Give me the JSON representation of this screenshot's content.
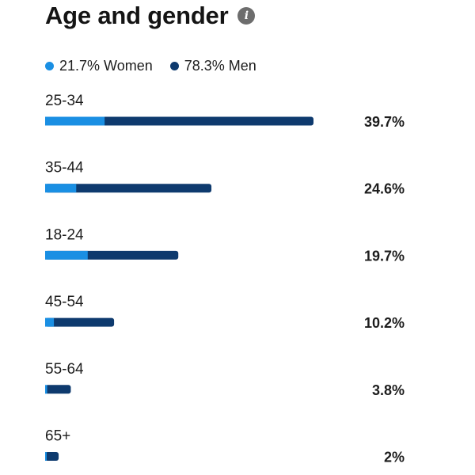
{
  "header": {
    "title": "Age and gender",
    "info_icon": "info-icon"
  },
  "legend": [
    {
      "label": "21.7% Women",
      "color": "#1a8fe3"
    },
    {
      "label": "78.3% Men",
      "color": "#0e3a6e"
    }
  ],
  "chart_data": {
    "type": "bar",
    "orientation": "horizontal",
    "stacked": true,
    "categories": [
      "25-34",
      "35-44",
      "18-24",
      "45-54",
      "55-64",
      "65+"
    ],
    "totals": [
      39.7,
      24.6,
      19.7,
      10.2,
      3.8,
      2
    ],
    "total_labels": [
      "39.7%",
      "24.6%",
      "19.7%",
      "10.2%",
      "3.8%",
      "2%"
    ],
    "series": [
      {
        "name": "Women",
        "values": [
          8.8,
          4.6,
          6.3,
          1.3,
          0.3,
          0.2
        ],
        "color": "#1a8fe3"
      },
      {
        "name": "Men",
        "values": [
          30.9,
          20.0,
          13.4,
          8.9,
          3.5,
          1.8
        ],
        "color": "#0e3a6e"
      }
    ],
    "xlim": [
      0,
      39.7
    ],
    "grid": false,
    "legend_position": "top-left"
  }
}
